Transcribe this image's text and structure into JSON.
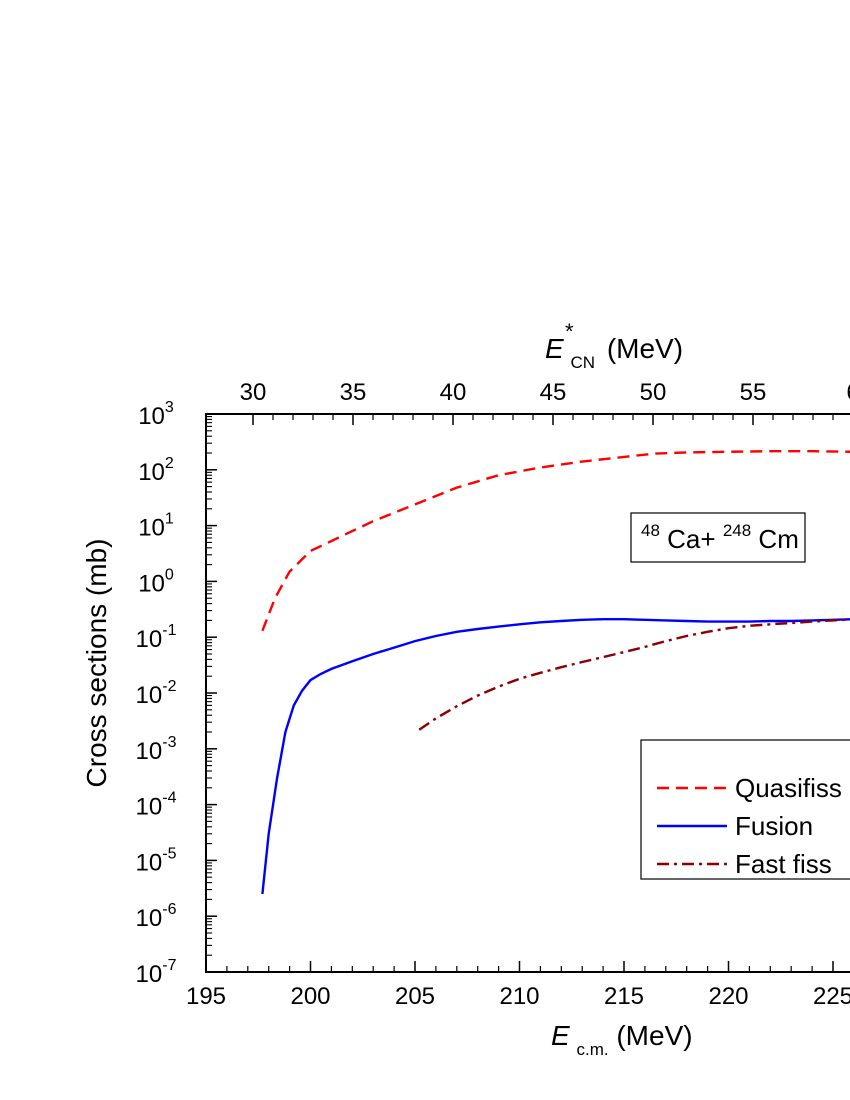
{
  "chart_data": {
    "type": "line",
    "title": "",
    "ylabel": "Cross sections (mb)",
    "xlabel": {
      "base": "E",
      "sub": "c.m.",
      "unit": "(MeV)"
    },
    "x2label": {
      "base": "E",
      "sub": "CN",
      "sup": "*",
      "unit": "(MeV)"
    },
    "yscale": "log",
    "ylim": [
      1e-07,
      1000
    ],
    "xlim": [
      195,
      227
    ],
    "x2lim": [
      30,
      60
    ],
    "xticks": [
      "195",
      "200",
      "205",
      "210",
      "215",
      "220",
      "225"
    ],
    "x2ticks": [
      "30",
      "35",
      "40",
      "45",
      "50",
      "55",
      "6"
    ],
    "yticks": [
      {
        "base": "10",
        "exp": "3"
      },
      {
        "base": "10",
        "exp": "2"
      },
      {
        "base": "10",
        "exp": "1"
      },
      {
        "base": "10",
        "exp": "0"
      },
      {
        "base": "10",
        "exp": "-1"
      },
      {
        "base": "10",
        "exp": "-2"
      },
      {
        "base": "10",
        "exp": "-3"
      },
      {
        "base": "10",
        "exp": "-4"
      },
      {
        "base": "10",
        "exp": "-5"
      },
      {
        "base": "10",
        "exp": "-6"
      },
      {
        "base": "10",
        "exp": "-7"
      }
    ],
    "annotation": {
      "sup1": "48",
      "el1": "Ca+",
      "sup2": "248",
      "el2": "Cm"
    },
    "legend_position": "lower-right",
    "series": [
      {
        "name": "Quasifiss",
        "color": "#ff0000",
        "style": "dashed",
        "x": [
          197.7,
          198.3,
          199.0,
          200.0,
          201.5,
          203.0,
          205.0,
          207.0,
          209.0,
          211.0,
          213.0,
          215.0,
          216.5,
          218.0,
          220.0,
          222.0,
          224.0,
          226.0,
          227.0
        ],
        "y": [
          0.13,
          0.5,
          1.5,
          3.5,
          6.5,
          12,
          24,
          48,
          80,
          110,
          140,
          170,
          195,
          205,
          210,
          215,
          215,
          210,
          210
        ]
      },
      {
        "name": "Fusion",
        "color": "#0000ff",
        "style": "solid",
        "x": [
          197.7,
          198.0,
          198.4,
          198.8,
          199.2,
          199.6,
          200.0,
          200.5,
          201.0,
          202.0,
          203.0,
          204.0,
          205.0,
          206.0,
          207.0,
          208.0,
          209.0,
          210.0,
          211.0,
          212.0,
          213.0,
          214.0,
          215.0,
          216.0,
          217.0,
          218.0,
          219.0,
          220.0,
          221.0,
          222.0,
          223.0,
          224.0,
          225.0,
          226.0,
          227.0
        ],
        "y": [
          2.5e-06,
          3e-05,
          0.0003,
          0.002,
          0.006,
          0.011,
          0.017,
          0.022,
          0.027,
          0.037,
          0.05,
          0.065,
          0.085,
          0.105,
          0.125,
          0.14,
          0.155,
          0.17,
          0.185,
          0.195,
          0.205,
          0.21,
          0.21,
          0.205,
          0.2,
          0.195,
          0.19,
          0.19,
          0.19,
          0.195,
          0.195,
          0.2,
          0.205,
          0.21,
          0.215
        ]
      },
      {
        "name": "Fast fiss",
        "color": "#8b0000",
        "style": "dashdot",
        "x": [
          205.2,
          206.0,
          207.0,
          208.0,
          209.0,
          210.0,
          211.0,
          212.0,
          213.0,
          214.0,
          215.0,
          216.0,
          217.0,
          218.0,
          219.0,
          220.0,
          221.0,
          222.0,
          223.0,
          224.0,
          225.0,
          226.0,
          227.0
        ],
        "y": [
          0.0022,
          0.0035,
          0.0058,
          0.009,
          0.013,
          0.018,
          0.023,
          0.029,
          0.036,
          0.044,
          0.054,
          0.067,
          0.085,
          0.105,
          0.125,
          0.145,
          0.16,
          0.17,
          0.18,
          0.19,
          0.2,
          0.21,
          0.215
        ]
      }
    ]
  }
}
